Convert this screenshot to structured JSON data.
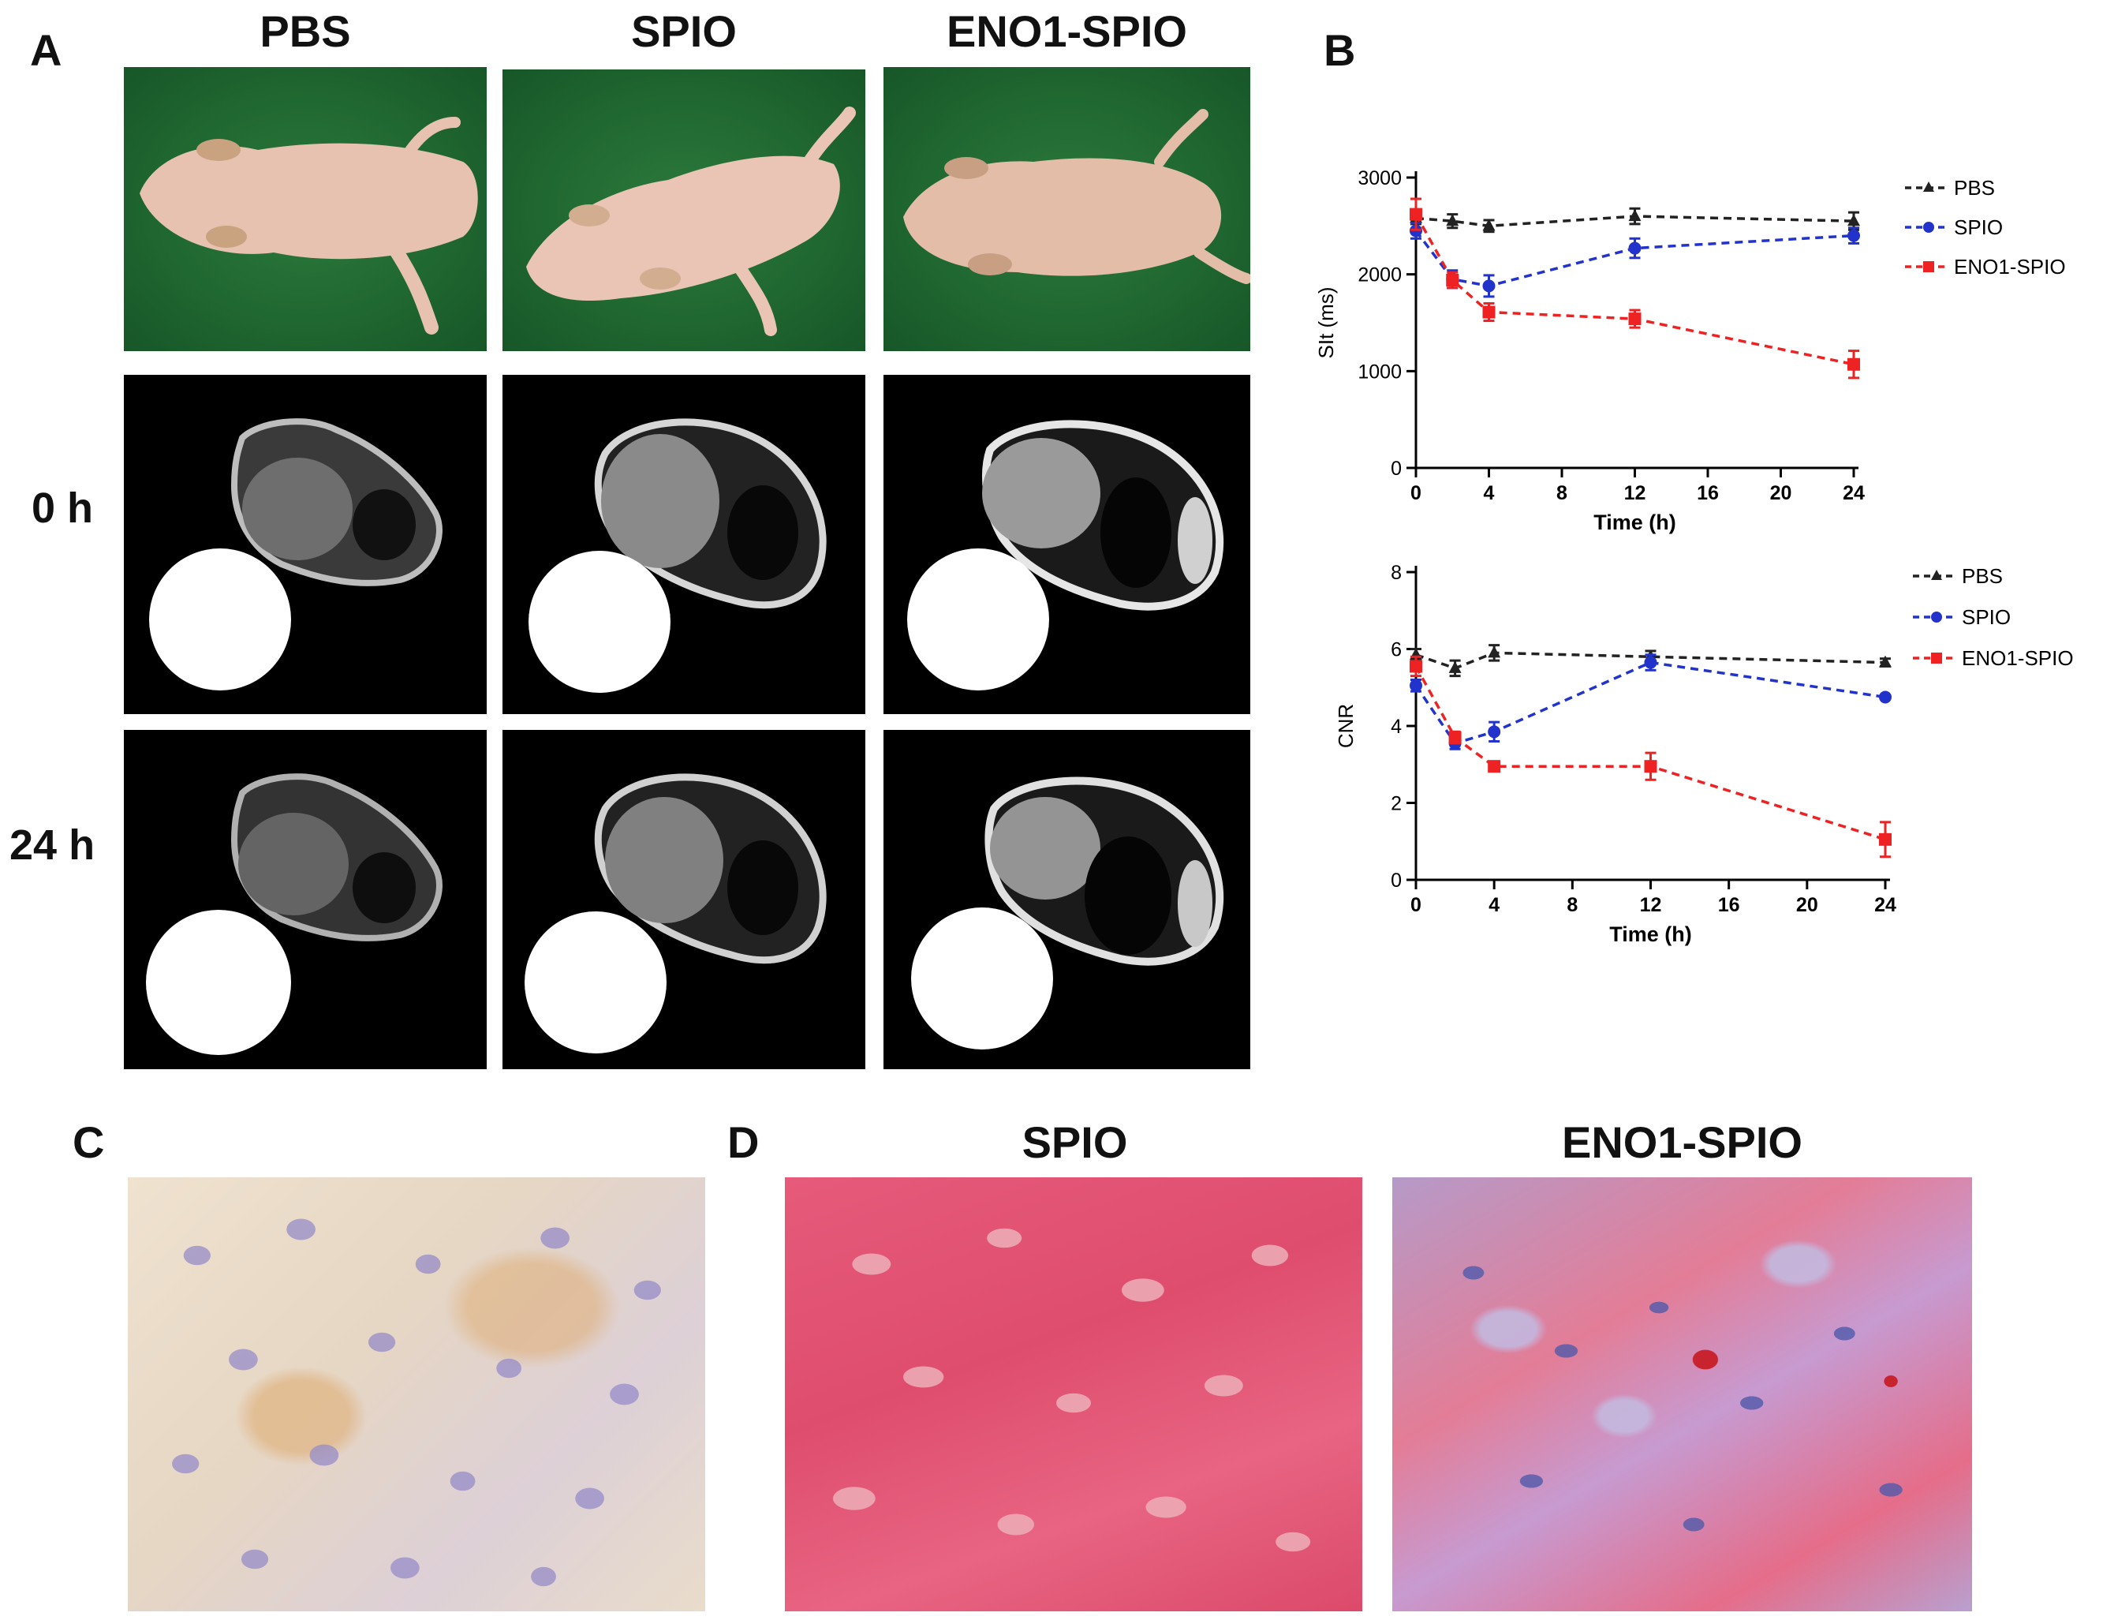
{
  "panel_a": {
    "letter": "A",
    "columns": [
      "PBS",
      "SPIO",
      "ENO1-SPIO"
    ],
    "rows": [
      "0 h",
      "24 h"
    ]
  },
  "panel_b": {
    "letter": "B"
  },
  "panel_c": {
    "letter": "C"
  },
  "panel_d": {
    "letter": "D",
    "columns": [
      "SPIO",
      "ENO1-SPIO"
    ]
  },
  "colors": {
    "PBS": "#222222",
    "SPIO": "#2233cc",
    "ENO1-SPIO": "#ee2222"
  },
  "chart_data": [
    {
      "type": "line",
      "xlabel": "Time (h)",
      "ylabel": "SIt (ms)",
      "x_ticks": [
        0,
        4,
        8,
        12,
        16,
        20,
        24
      ],
      "y_ticks": [
        0,
        1000,
        2000,
        3000
      ],
      "xlim": [
        0,
        24
      ],
      "ylim": [
        0,
        3000
      ],
      "legend_position": "top-right",
      "series": [
        {
          "name": "PBS",
          "marker": "triangle",
          "x": [
            0,
            2,
            4,
            12,
            24
          ],
          "y": [
            2580,
            2550,
            2500,
            2600,
            2550
          ],
          "err": [
            60,
            70,
            60,
            80,
            90
          ]
        },
        {
          "name": "SPIO",
          "marker": "circle",
          "x": [
            0,
            2,
            4,
            12,
            24
          ],
          "y": [
            2450,
            1950,
            1880,
            2270,
            2400
          ],
          "err": [
            80,
            90,
            110,
            100,
            80
          ]
        },
        {
          "name": "ENO1-SPIO",
          "marker": "square",
          "x": [
            0,
            2,
            4,
            12,
            24
          ],
          "y": [
            2620,
            1940,
            1610,
            1540,
            1070
          ],
          "err": [
            160,
            80,
            90,
            90,
            140
          ]
        }
      ]
    },
    {
      "type": "line",
      "xlabel": "Time (h)",
      "ylabel": "CNR",
      "x_ticks": [
        0,
        4,
        8,
        12,
        16,
        20,
        24
      ],
      "y_ticks": [
        0,
        2,
        4,
        6,
        8
      ],
      "xlim": [
        0,
        24
      ],
      "ylim": [
        0,
        8
      ],
      "legend_position": "top-right",
      "series": [
        {
          "name": "PBS",
          "marker": "triangle",
          "x": [
            0,
            2,
            4,
            12,
            24
          ],
          "y": [
            5.85,
            5.5,
            5.9,
            5.8,
            5.65
          ],
          "err": [
            0.15,
            0.2,
            0.2,
            0.15,
            0.1
          ]
        },
        {
          "name": "SPIO",
          "marker": "circle",
          "x": [
            0,
            2,
            4,
            12,
            24
          ],
          "y": [
            5.05,
            3.55,
            3.85,
            5.65,
            4.75
          ],
          "err": [
            0.15,
            0.15,
            0.25,
            0.2,
            0.05
          ]
        },
        {
          "name": "ENO1-SPIO",
          "marker": "square",
          "x": [
            0,
            2,
            4,
            12,
            24
          ],
          "y": [
            5.55,
            3.7,
            2.95,
            2.95,
            1.05
          ],
          "err": [
            0.25,
            0.15,
            0.1,
            0.35,
            0.45
          ]
        }
      ]
    }
  ]
}
